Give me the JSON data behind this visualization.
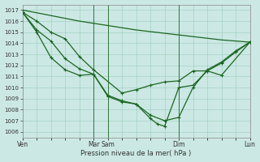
{
  "background_color": "#cce8e4",
  "grid_color": "#99ccbb",
  "line_color": "#1a6620",
  "ylabel_text": "Pression niveau de la mer( hPa )",
  "ylim": [
    1005.5,
    1017.5
  ],
  "yticks": [
    1006,
    1007,
    1008,
    1009,
    1010,
    1011,
    1012,
    1013,
    1014,
    1015,
    1016,
    1017
  ],
  "xtick_positions": [
    0,
    60,
    72,
    132,
    192
  ],
  "xtick_labels": [
    "Ven",
    "Mar",
    "Sam",
    "Dim",
    "Lun"
  ],
  "vlines_x": [
    60,
    72,
    132,
    192
  ],
  "xlim": [
    0,
    192
  ],
  "lines": [
    {
      "x": [
        0,
        24,
        48,
        72,
        96,
        120,
        144,
        168,
        192
      ],
      "y": [
        1017.0,
        1016.5,
        1016.0,
        1015.6,
        1015.2,
        1014.9,
        1014.6,
        1014.3,
        1014.1
      ],
      "has_markers": false
    },
    {
      "x": [
        0,
        12,
        24,
        36,
        48,
        60,
        84,
        96,
        108,
        120,
        132,
        144,
        156,
        168,
        192
      ],
      "y": [
        1016.8,
        1016.0,
        1015.0,
        1014.4,
        1012.8,
        1011.6,
        1009.5,
        1009.8,
        1010.2,
        1010.5,
        1010.6,
        1011.5,
        1011.5,
        1011.1,
        1014.1
      ],
      "has_markers": true
    },
    {
      "x": [
        0,
        12,
        24,
        36,
        48,
        60,
        72,
        84,
        96,
        108,
        120,
        132,
        144,
        156,
        168,
        180,
        192
      ],
      "y": [
        1016.8,
        1015.2,
        1014.2,
        1012.6,
        1011.7,
        1011.2,
        1009.3,
        1008.8,
        1008.5,
        1007.5,
        1007.0,
        1007.3,
        1010.0,
        1011.6,
        1012.3,
        1013.3,
        1014.1
      ],
      "has_markers": true
    },
    {
      "x": [
        0,
        12,
        24,
        36,
        48,
        60,
        72,
        84,
        96,
        108,
        114,
        120,
        132,
        144,
        156,
        168,
        180,
        192
      ],
      "y": [
        1016.8,
        1015.0,
        1012.7,
        1011.6,
        1011.1,
        1011.2,
        1009.2,
        1008.7,
        1008.5,
        1007.2,
        1006.7,
        1006.5,
        1010.0,
        1010.2,
        1011.5,
        1012.2,
        1013.2,
        1014.1
      ],
      "has_markers": true
    }
  ],
  "figsize": [
    3.2,
    2.0
  ],
  "dpi": 100
}
